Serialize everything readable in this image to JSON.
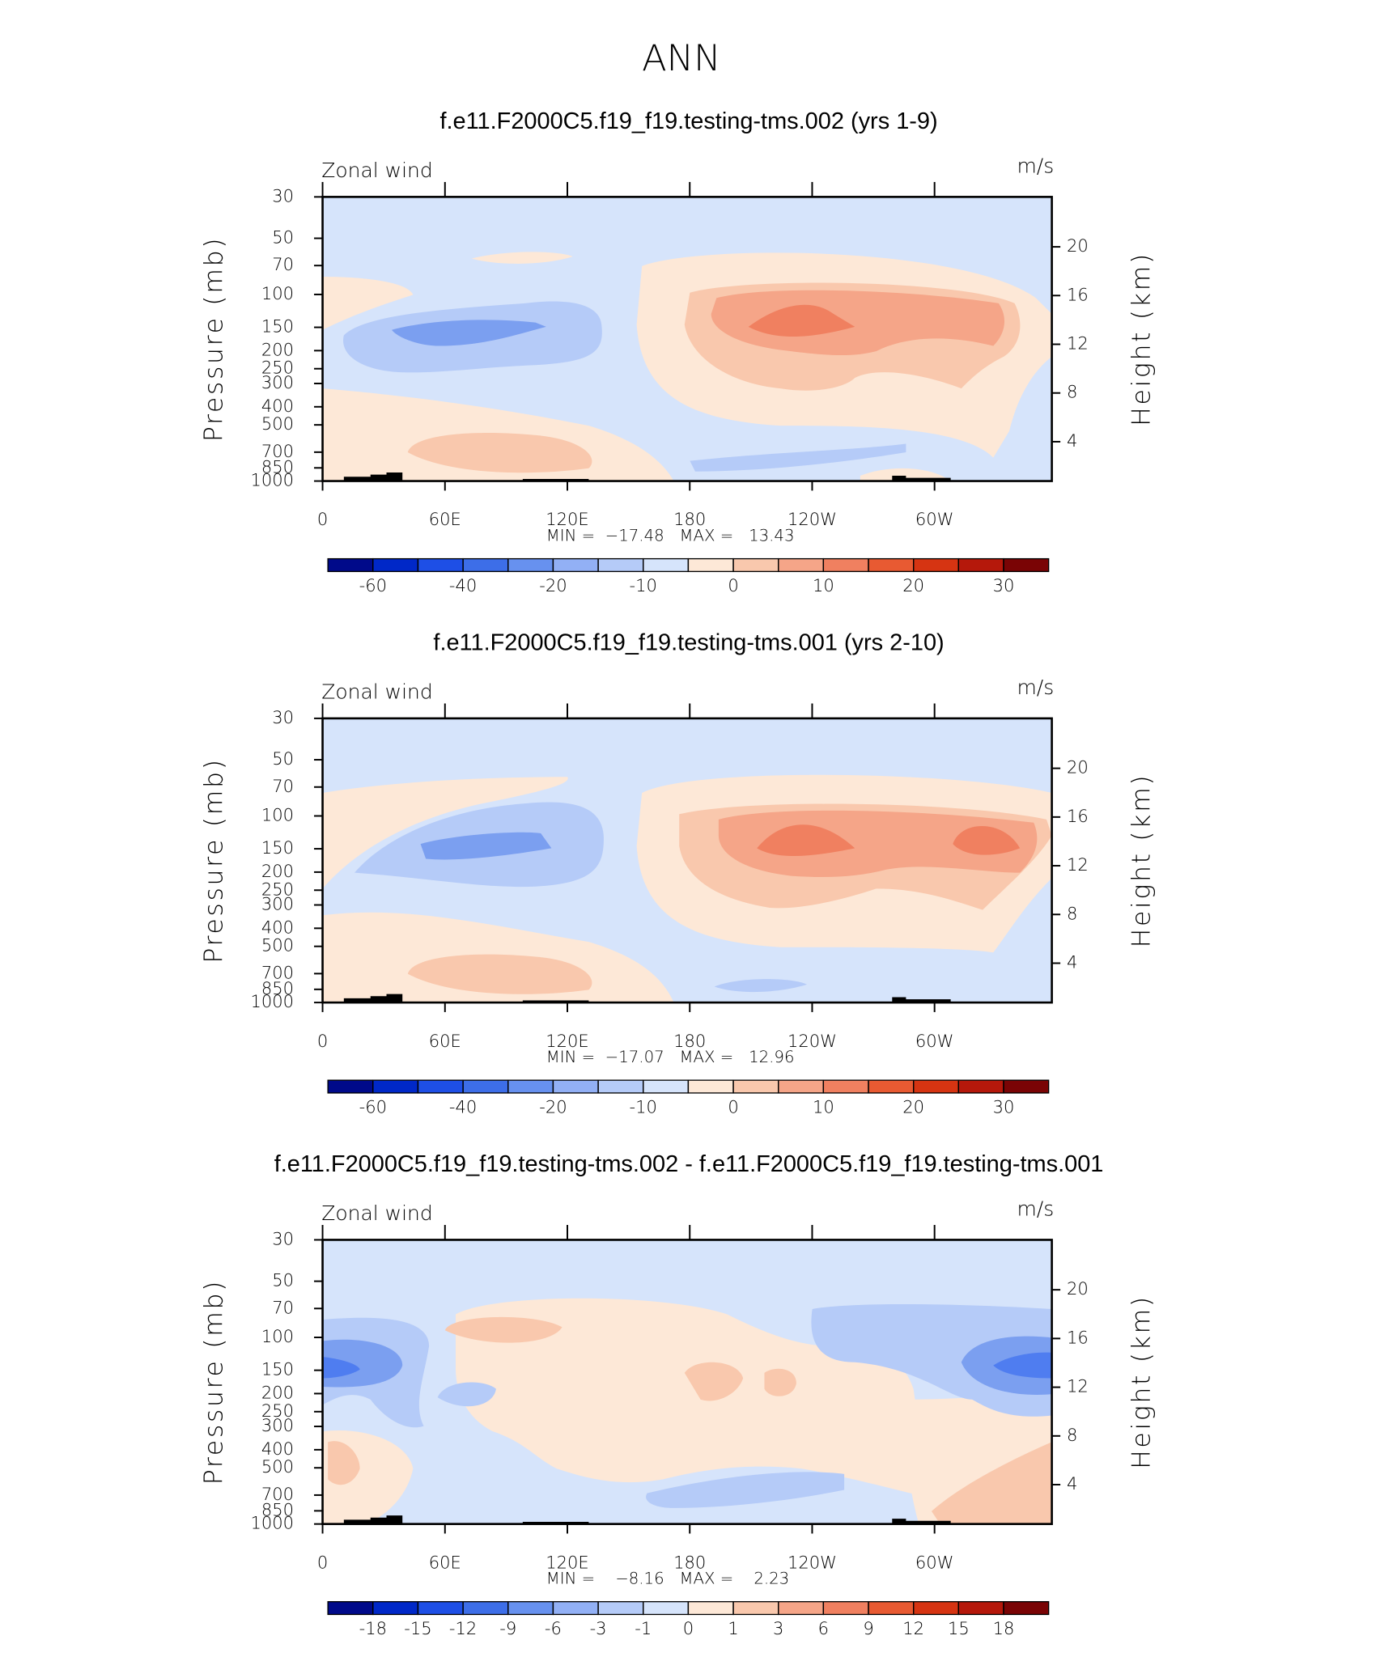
{
  "title": "ANN",
  "chart_data": [
    {
      "type": "contour",
      "title": "f.e11.F2000C5.f19_f19.testing-tms.002 (yrs 1-9)",
      "left_label": "Zonal wind",
      "right_label": "m/s",
      "ylabel": "Pressure (mb)",
      "y2label": "Height (km)",
      "stats": "MIN =  −17.48   MAX =   13.43",
      "xlim": [
        0,
        357.5
      ],
      "xticks": [
        0,
        {
          "value": 60,
          "label": "60E"
        },
        {
          "value": 120,
          "label": "120E"
        },
        180,
        {
          "value": 240,
          "label": "120W"
        },
        {
          "value": 300,
          "label": "60W"
        }
      ],
      "ylim": [
        1000,
        30
      ],
      "log_y": true,
      "yticks": [
        30,
        50,
        70,
        100,
        150,
        200,
        250,
        300,
        400,
        500,
        700,
        850,
        1000
      ],
      "y2lim": [
        0.77,
        24.1
      ],
      "y2ticks": [
        4,
        8,
        12,
        16,
        20
      ],
      "colorbar": {
        "levels": [
          -60,
          -50,
          -40,
          -30,
          -20,
          -15,
          -10,
          -5,
          0,
          5,
          10,
          15,
          20,
          25,
          30
        ],
        "ticks": [
          -60,
          -40,
          -20,
          -10,
          0,
          10,
          20,
          30
        ],
        "colors": [
          "#000a8a",
          "#0028c8",
          "#1e4fe6",
          "#3d6ee8",
          "#6791ef",
          "#92b0f5",
          "#b5cbf8",
          "#d6e4fb",
          "#fde8d7",
          "#f9c8ad",
          "#f5a588",
          "#f08060",
          "#e85a32",
          "#d63412",
          "#b5180b",
          "#7a0405"
        ]
      }
    },
    {
      "type": "contour",
      "title": "f.e11.F2000C5.f19_f19.testing-tms.001 (yrs 2-10)",
      "left_label": "Zonal wind",
      "right_label": "m/s",
      "ylabel": "Pressure (mb)",
      "y2label": "Height (km)",
      "stats": "MIN =  −17.07   MAX =   12.96",
      "xlim": [
        0,
        357.5
      ],
      "xticks": [
        0,
        {
          "value": 60,
          "label": "60E"
        },
        {
          "value": 120,
          "label": "120E"
        },
        180,
        {
          "value": 240,
          "label": "120W"
        },
        {
          "value": 300,
          "label": "60W"
        }
      ],
      "ylim": [
        1000,
        30
      ],
      "log_y": true,
      "yticks": [
        30,
        50,
        70,
        100,
        150,
        200,
        250,
        300,
        400,
        500,
        700,
        850,
        1000
      ],
      "y2lim": [
        0.77,
        24.1
      ],
      "y2ticks": [
        4,
        8,
        12,
        16,
        20
      ],
      "colorbar": {
        "levels": [
          -60,
          -50,
          -40,
          -30,
          -20,
          -15,
          -10,
          -5,
          0,
          5,
          10,
          15,
          20,
          25,
          30
        ],
        "ticks": [
          -60,
          -40,
          -20,
          -10,
          0,
          10,
          20,
          30
        ],
        "colors": [
          "#000a8a",
          "#0028c8",
          "#1e4fe6",
          "#3d6ee8",
          "#6791ef",
          "#92b0f5",
          "#b5cbf8",
          "#d6e4fb",
          "#fde8d7",
          "#f9c8ad",
          "#f5a588",
          "#f08060",
          "#e85a32",
          "#d63412",
          "#b5180b",
          "#7a0405"
        ]
      }
    },
    {
      "type": "contour",
      "title": "f.e11.F2000C5.f19_f19.testing-tms.002 - f.e11.F2000C5.f19_f19.testing-tms.001",
      "left_label": "Zonal wind",
      "right_label": "m/s",
      "ylabel": "Pressure (mb)",
      "y2label": "Height (km)",
      "stats": "MIN =    −8.16   MAX =    2.23",
      "xlim": [
        0,
        357.5
      ],
      "xticks": [
        0,
        {
          "value": 60,
          "label": "60E"
        },
        {
          "value": 120,
          "label": "120E"
        },
        180,
        {
          "value": 240,
          "label": "120W"
        },
        {
          "value": 300,
          "label": "60W"
        }
      ],
      "ylim": [
        1000,
        30
      ],
      "log_y": true,
      "yticks": [
        30,
        50,
        70,
        100,
        150,
        200,
        250,
        300,
        400,
        500,
        700,
        850,
        1000
      ],
      "y2lim": [
        0.77,
        24.1
      ],
      "y2ticks": [
        4,
        8,
        12,
        16,
        20
      ],
      "colorbar": {
        "levels": [
          -18,
          -15,
          -12,
          -9,
          -6,
          -3,
          -1,
          0,
          1,
          3,
          6,
          9,
          12,
          15,
          18
        ],
        "ticks": [
          -18,
          -15,
          -12,
          -9,
          -6,
          -3,
          -1,
          0,
          1,
          3,
          6,
          9,
          12,
          15,
          18
        ],
        "colors": [
          "#000a8a",
          "#0028c8",
          "#1e4fe6",
          "#3d6ee8",
          "#6791ef",
          "#92b0f5",
          "#b5cbf8",
          "#d6e4fb",
          "#fde8d7",
          "#f9c8ad",
          "#f5a588",
          "#f08060",
          "#e85a32",
          "#d63412",
          "#b5180b",
          "#7a0405"
        ]
      }
    }
  ]
}
